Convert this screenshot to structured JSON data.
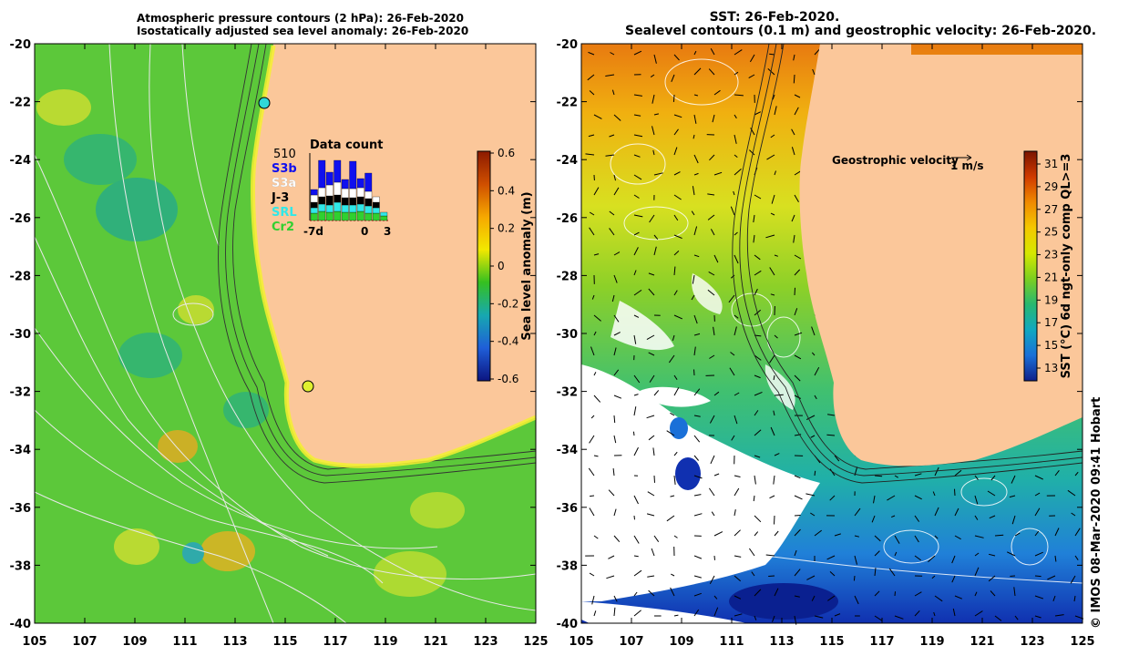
{
  "left_map": {
    "title_line1": "Atmospheric pressure contours (2 hPa): 26-Feb-2020",
    "title_line2": "Isostatically adjusted sea level anomaly: 26-Feb-2020",
    "colorbar_label": "Sea level anomaly (m)",
    "colorbar_ticks": [
      "0.6",
      "0.4",
      "0.2",
      "0",
      "-0.2",
      "-0.4",
      "-0.6"
    ],
    "colorbar_stops": [
      "#8c1a00",
      "#cf4f00",
      "#f6a800",
      "#f2e800",
      "#35c020",
      "#17a8b0",
      "#1f5ed8",
      "#0c1580"
    ],
    "ocean_color": "#5cc83a",
    "land_color": "#fbc79a",
    "inset": {
      "title": "Data count",
      "max_label": "510",
      "x_labels": [
        "-7d",
        "0",
        "3"
      ],
      "missions": [
        {
          "label": "S3b",
          "color": "#1010ee"
        },
        {
          "label": "S3a",
          "color": "#ffffff"
        },
        {
          "label": "J-3",
          "color": "#000000"
        },
        {
          "label": "SRL",
          "color": "#30e8e8"
        },
        {
          "label": "Cr2",
          "color": "#30d030"
        }
      ]
    }
  },
  "right_map": {
    "title_line1": "SST: 26-Feb-2020.",
    "title_line2": "Sealevel contours (0.1 m) and geostrophic velocity: 26-Feb-2020.",
    "colorbar_label": "SST (°C) 6d ngt-only comp QL>=3",
    "colorbar_ticks": [
      "31",
      "29",
      "27",
      "25",
      "23",
      "21",
      "19",
      "17",
      "15",
      "13"
    ],
    "colorbar_stops": [
      "#7a1400",
      "#d03a00",
      "#f08a00",
      "#f4c800",
      "#d6e800",
      "#7ccf20",
      "#28b870",
      "#10a8c0",
      "#1a70d8",
      "#10208a"
    ],
    "velocity_label": "Geostrophic velocity",
    "velocity_scale": "1 m/s",
    "land_color": "#fbc79a"
  },
  "axes": {
    "x_ticks": [
      "105",
      "107",
      "109",
      "111",
      "113",
      "115",
      "117",
      "119",
      "121",
      "123",
      "125"
    ],
    "y_ticks": [
      "-20",
      "-22",
      "-24",
      "-26",
      "-28",
      "-30",
      "-32",
      "-34",
      "-36",
      "-38",
      "-40"
    ]
  },
  "credit": "© IMOS 08-Mar-2020 09:41 Hobart"
}
